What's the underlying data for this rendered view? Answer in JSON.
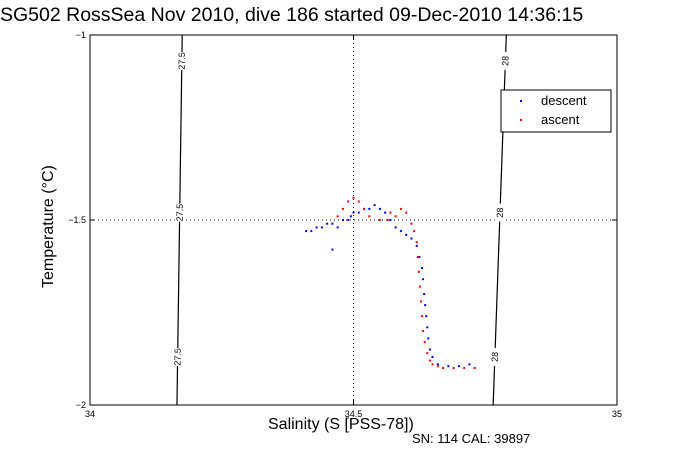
{
  "chart_data": {
    "type": "scatter",
    "title": "SG502 RossSea Nov 2010, dive 186 started 09-Dec-2010 14:36:15",
    "xlabel": "Salinity (S [PSS-78])",
    "ylabel": "Temperature (°C)",
    "xlim": [
      34,
      35
    ],
    "ylim": [
      -2,
      -1
    ],
    "xticks": [
      "34",
      "34.5",
      "35"
    ],
    "yticks": [
      "-1",
      "-1.5",
      "-2"
    ],
    "grid": "dotted at 34.5 and -1.5",
    "legend_position": "top-right",
    "footnote": "SN: 114  CAL: 39897",
    "density_contours": [
      {
        "label": "27.5",
        "points": [
          [
            34.175,
            -1.0
          ],
          [
            34.165,
            -2.0
          ]
        ]
      },
      {
        "label": "28",
        "points": [
          [
            34.79,
            -1.0
          ],
          [
            34.765,
            -2.0
          ]
        ]
      }
    ],
    "series": [
      {
        "name": "descent",
        "color": "#0000ff",
        "points": [
          [
            34.41,
            -1.53
          ],
          [
            34.42,
            -1.53
          ],
          [
            34.43,
            -1.52
          ],
          [
            34.44,
            -1.52
          ],
          [
            34.45,
            -1.51
          ],
          [
            34.46,
            -1.51
          ],
          [
            34.47,
            -1.52
          ],
          [
            34.48,
            -1.5
          ],
          [
            34.49,
            -1.5
          ],
          [
            34.495,
            -1.49
          ],
          [
            34.5,
            -1.48
          ],
          [
            34.51,
            -1.48
          ],
          [
            34.52,
            -1.47
          ],
          [
            34.53,
            -1.47
          ],
          [
            34.54,
            -1.46
          ],
          [
            34.55,
            -1.47
          ],
          [
            34.56,
            -1.48
          ],
          [
            34.57,
            -1.5
          ],
          [
            34.58,
            -1.52
          ],
          [
            34.59,
            -1.53
          ],
          [
            34.6,
            -1.54
          ],
          [
            34.61,
            -1.55
          ],
          [
            34.62,
            -1.57
          ],
          [
            34.625,
            -1.6
          ],
          [
            34.63,
            -1.63
          ],
          [
            34.632,
            -1.66
          ],
          [
            34.634,
            -1.7
          ],
          [
            34.636,
            -1.73
          ],
          [
            34.638,
            -1.76
          ],
          [
            34.64,
            -1.79
          ],
          [
            34.642,
            -1.82
          ],
          [
            34.645,
            -1.85
          ],
          [
            34.65,
            -1.87
          ],
          [
            34.66,
            -1.89
          ],
          [
            34.68,
            -1.895
          ],
          [
            34.7,
            -1.895
          ],
          [
            34.72,
            -1.89
          ],
          [
            34.46,
            -1.58
          ]
        ]
      },
      {
        "name": "ascent",
        "color": "#ff0000",
        "points": [
          [
            34.47,
            -1.49
          ],
          [
            34.48,
            -1.47
          ],
          [
            34.49,
            -1.45
          ],
          [
            34.5,
            -1.44
          ],
          [
            34.51,
            -1.45
          ],
          [
            34.52,
            -1.47
          ],
          [
            34.53,
            -1.49
          ],
          [
            34.55,
            -1.5
          ],
          [
            34.57,
            -1.48
          ],
          [
            34.58,
            -1.49
          ],
          [
            34.59,
            -1.47
          ],
          [
            34.61,
            -1.51
          ],
          [
            34.615,
            -1.53
          ],
          [
            34.62,
            -1.56
          ],
          [
            34.622,
            -1.6
          ],
          [
            34.624,
            -1.64
          ],
          [
            34.626,
            -1.68
          ],
          [
            34.628,
            -1.72
          ],
          [
            34.63,
            -1.76
          ],
          [
            34.632,
            -1.8
          ],
          [
            34.635,
            -1.83
          ],
          [
            34.64,
            -1.86
          ],
          [
            34.645,
            -1.88
          ],
          [
            34.65,
            -1.89
          ],
          [
            34.66,
            -1.895
          ],
          [
            34.67,
            -1.9
          ],
          [
            34.69,
            -1.9
          ],
          [
            34.71,
            -1.9
          ],
          [
            34.73,
            -1.9
          ],
          [
            34.6,
            -1.48
          ],
          [
            34.565,
            -1.5
          ]
        ]
      }
    ]
  }
}
